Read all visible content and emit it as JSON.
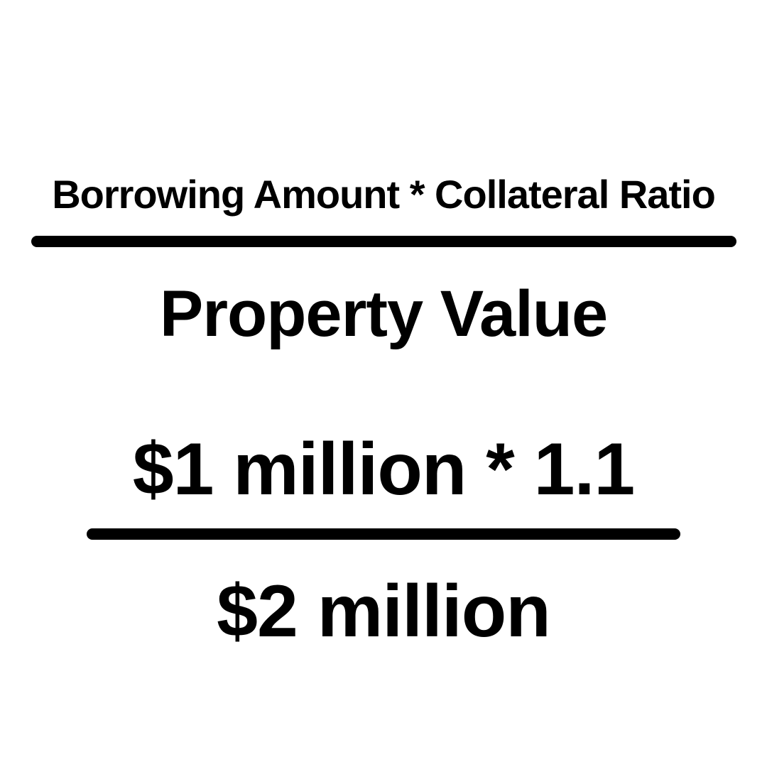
{
  "formula": {
    "numerator": "Borrowing Amount * Collateral Ratio",
    "denominator": "Property Value"
  },
  "example": {
    "numerator": "$1 million * 1.1",
    "denominator": "$2 million"
  },
  "colors": {
    "background": "#ffffff",
    "text": "#000000"
  }
}
